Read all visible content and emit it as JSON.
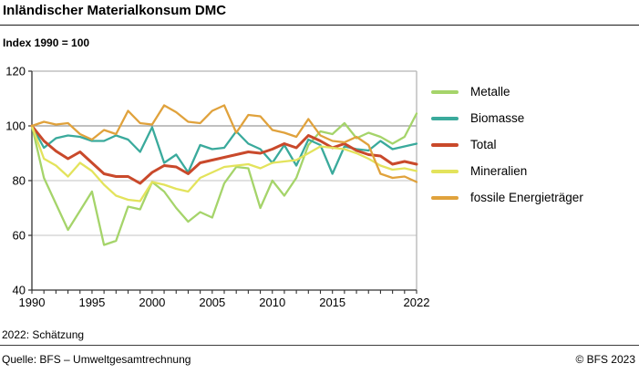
{
  "header": {
    "title": "Inländischer Materialkonsum DMC",
    "subtitle": "Index 1990 = 100"
  },
  "chart_data": {
    "type": "line",
    "title": "Inländischer Materialkonsum DMC",
    "index_note": "Index 1990 = 100",
    "x": [
      1990,
      1991,
      1992,
      1993,
      1994,
      1995,
      1996,
      1997,
      1998,
      1999,
      2000,
      2001,
      2002,
      2003,
      2004,
      2005,
      2006,
      2007,
      2008,
      2009,
      2010,
      2011,
      2012,
      2013,
      2014,
      2015,
      2016,
      2017,
      2018,
      2019,
      2020,
      2021,
      2022
    ],
    "series": [
      {
        "name": "Metalle",
        "color": "#a5d46a",
        "width": 2.3,
        "values": [
          100,
          81,
          71.5,
          62,
          69,
          76,
          56.5,
          58,
          70.5,
          69.5,
          79.5,
          76,
          70,
          65,
          68.5,
          66.5,
          79,
          85,
          84.5,
          70,
          80,
          74.5,
          81,
          93,
          98,
          97,
          101,
          95.5,
          97.5,
          96,
          93.5,
          96,
          104.5
        ]
      },
      {
        "name": "Biomasse",
        "color": "#3aaa9c",
        "width": 2.3,
        "values": [
          100,
          92,
          95.5,
          96.5,
          96,
          94.5,
          94.5,
          96.5,
          95,
          90.5,
          99.5,
          86.5,
          89.5,
          83,
          93,
          91.5,
          92,
          98,
          93.5,
          91.5,
          86.5,
          93,
          85.5,
          95,
          93,
          82.5,
          92.5,
          91.5,
          91,
          94.5,
          91.5,
          92.5,
          93.5
        ]
      },
      {
        "name": "Total",
        "color": "#c9492b",
        "width": 3,
        "values": [
          100,
          94.5,
          90.8,
          88,
          90.5,
          86.5,
          82.5,
          81.5,
          81.5,
          79,
          83,
          85.5,
          85,
          82.5,
          86.5,
          87.5,
          88.5,
          89.5,
          90.5,
          90,
          91.5,
          93.5,
          92,
          96.5,
          94.5,
          92,
          93.5,
          91,
          89.5,
          89,
          86,
          87,
          86
        ]
      },
      {
        "name": "Mineralien",
        "color": "#e3e35c",
        "width": 2.3,
        "values": [
          100,
          88,
          85.5,
          81.5,
          86.5,
          83.5,
          78.5,
          74.5,
          73,
          72.5,
          79.5,
          78.5,
          77,
          76,
          81,
          83,
          85,
          85.5,
          86,
          84.5,
          86.5,
          87,
          87.5,
          90,
          92.5,
          92,
          91.5,
          90,
          88,
          85.5,
          84,
          84.5,
          83.5
        ]
      },
      {
        "name": "fossile Energieträger",
        "color": "#e0a23c",
        "width": 2.3,
        "values": [
          100,
          101.5,
          100.5,
          101,
          97,
          95,
          98.5,
          97,
          105.5,
          101,
          100.5,
          107.5,
          105,
          101.5,
          101,
          105.5,
          107.5,
          97.5,
          104,
          103.5,
          98.5,
          97.5,
          96,
          102.5,
          96.5,
          94.5,
          94,
          96,
          93,
          82.5,
          81,
          81.5,
          79.5
        ]
      }
    ],
    "xticks": [
      1990,
      1995,
      2000,
      2005,
      2010,
      2015,
      2022
    ],
    "yticks": [
      40,
      60,
      80,
      100,
      120
    ],
    "xlim": [
      1990,
      2022
    ],
    "ylim": [
      40,
      120
    ],
    "grid": true,
    "legend_position": "right",
    "colors": {
      "axis": "#333333",
      "grid_minor": "#cfcfcf",
      "grid_100": "#9a9a9a",
      "border": "#b5b5b5"
    }
  },
  "footnote": "2022: Schätzung",
  "footer": {
    "source": "Quelle: BFS – Umweltgesamtrechnung",
    "copyright": "© BFS 2023"
  }
}
